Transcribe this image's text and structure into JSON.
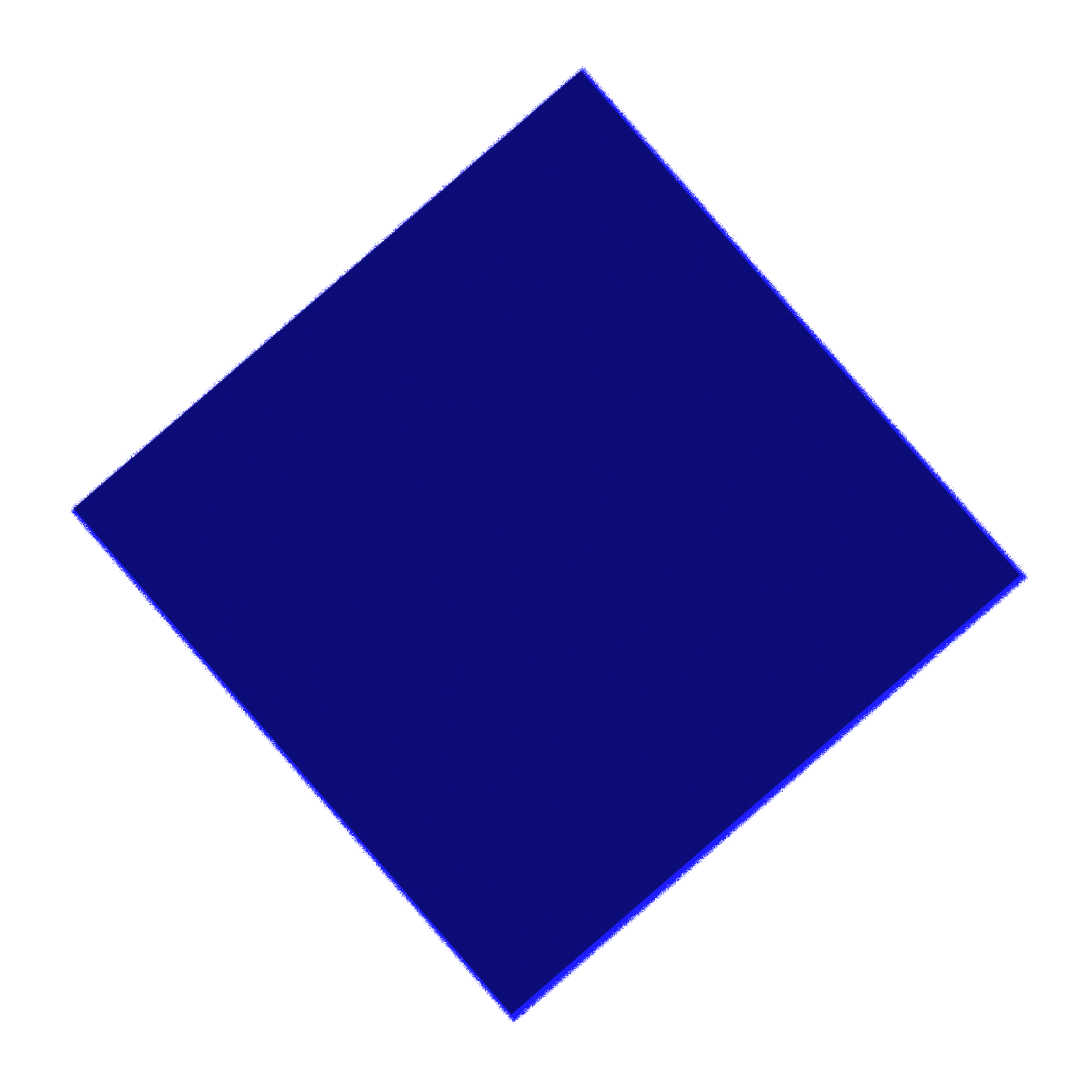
{
  "scene": {
    "background_color": "#ffffff",
    "shape_color": "#06066e",
    "edge_fringe_color": "#1a1aff",
    "texture_dark_color": "#03034f"
  }
}
